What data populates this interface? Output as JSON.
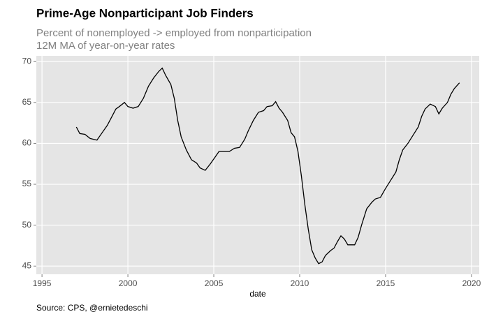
{
  "chart_data": {
    "type": "line",
    "title": "Prime-Age Nonparticipant Job Finders",
    "subtitle": [
      "Percent of nonemployed -> employed from nonparticipation",
      "12M MA of year-on-year rates"
    ],
    "x_label": "date",
    "source": "Source: CPS, @ernietedeschi",
    "x": [
      1997.0,
      1997.2,
      1997.5,
      1997.8,
      1998.0,
      1998.2,
      1998.5,
      1998.8,
      1999.0,
      1999.3,
      1999.5,
      1999.8,
      2000.0,
      2000.3,
      2000.6,
      2000.9,
      2001.2,
      2001.5,
      2001.8,
      2002.0,
      2002.2,
      2002.5,
      2002.7,
      2002.9,
      2003.1,
      2003.4,
      2003.7,
      2004.0,
      2004.2,
      2004.5,
      2004.8,
      2005.1,
      2005.3,
      2005.6,
      2005.9,
      2006.2,
      2006.5,
      2006.8,
      2007.0,
      2007.3,
      2007.6,
      2007.9,
      2008.1,
      2008.4,
      2008.6,
      2008.8,
      2009.0,
      2009.3,
      2009.5,
      2009.7,
      2009.9,
      2010.1,
      2010.3,
      2010.5,
      2010.7,
      2010.9,
      2011.1,
      2011.3,
      2011.5,
      2011.8,
      2012.0,
      2012.2,
      2012.4,
      2012.6,
      2012.8,
      2013.0,
      2013.2,
      2013.4,
      2013.6,
      2013.9,
      2014.2,
      2014.4,
      2014.7,
      2015.0,
      2015.3,
      2015.6,
      2015.8,
      2016.0,
      2016.3,
      2016.6,
      2016.9,
      2017.1,
      2017.3,
      2017.6,
      2017.9,
      2018.1,
      2018.3,
      2018.6,
      2018.8,
      2019.0,
      2019.3
    ],
    "series": [
      {
        "color": "#000000",
        "values": [
          62.0,
          61.2,
          61.1,
          60.6,
          60.5,
          60.4,
          61.3,
          62.2,
          63.0,
          64.2,
          64.5,
          65.0,
          64.5,
          64.3,
          64.5,
          65.5,
          67.0,
          68.0,
          68.8,
          69.2,
          68.3,
          67.2,
          65.5,
          62.8,
          60.8,
          59.2,
          58.0,
          57.6,
          57.0,
          56.7,
          57.5,
          58.4,
          59.0,
          59.0,
          59.0,
          59.4,
          59.5,
          60.5,
          61.5,
          62.8,
          63.8,
          64.0,
          64.5,
          64.6,
          65.1,
          64.3,
          63.8,
          62.8,
          61.3,
          60.8,
          59.0,
          56.0,
          52.5,
          49.5,
          47.0,
          46.0,
          45.3,
          45.5,
          46.3,
          46.9,
          47.2,
          48.0,
          48.7,
          48.3,
          47.6,
          47.6,
          47.6,
          48.5,
          50.0,
          52.0,
          52.8,
          53.2,
          53.4,
          54.5,
          55.5,
          56.5,
          58.0,
          59.2,
          60.0,
          61.0,
          62.0,
          63.3,
          64.2,
          64.8,
          64.5,
          63.6,
          64.3,
          65.0,
          66.0,
          66.7,
          67.4
        ]
      }
    ],
    "xlim": [
      1994.67,
      2020.45
    ],
    "xticks": [
      1995,
      2000,
      2005,
      2010,
      2015,
      2020
    ],
    "ylim": [
      44.0,
      70.7
    ],
    "yticks": [
      45,
      50,
      55,
      60,
      65,
      70
    ],
    "grid": true,
    "panel_color": "#e5e5e5"
  }
}
